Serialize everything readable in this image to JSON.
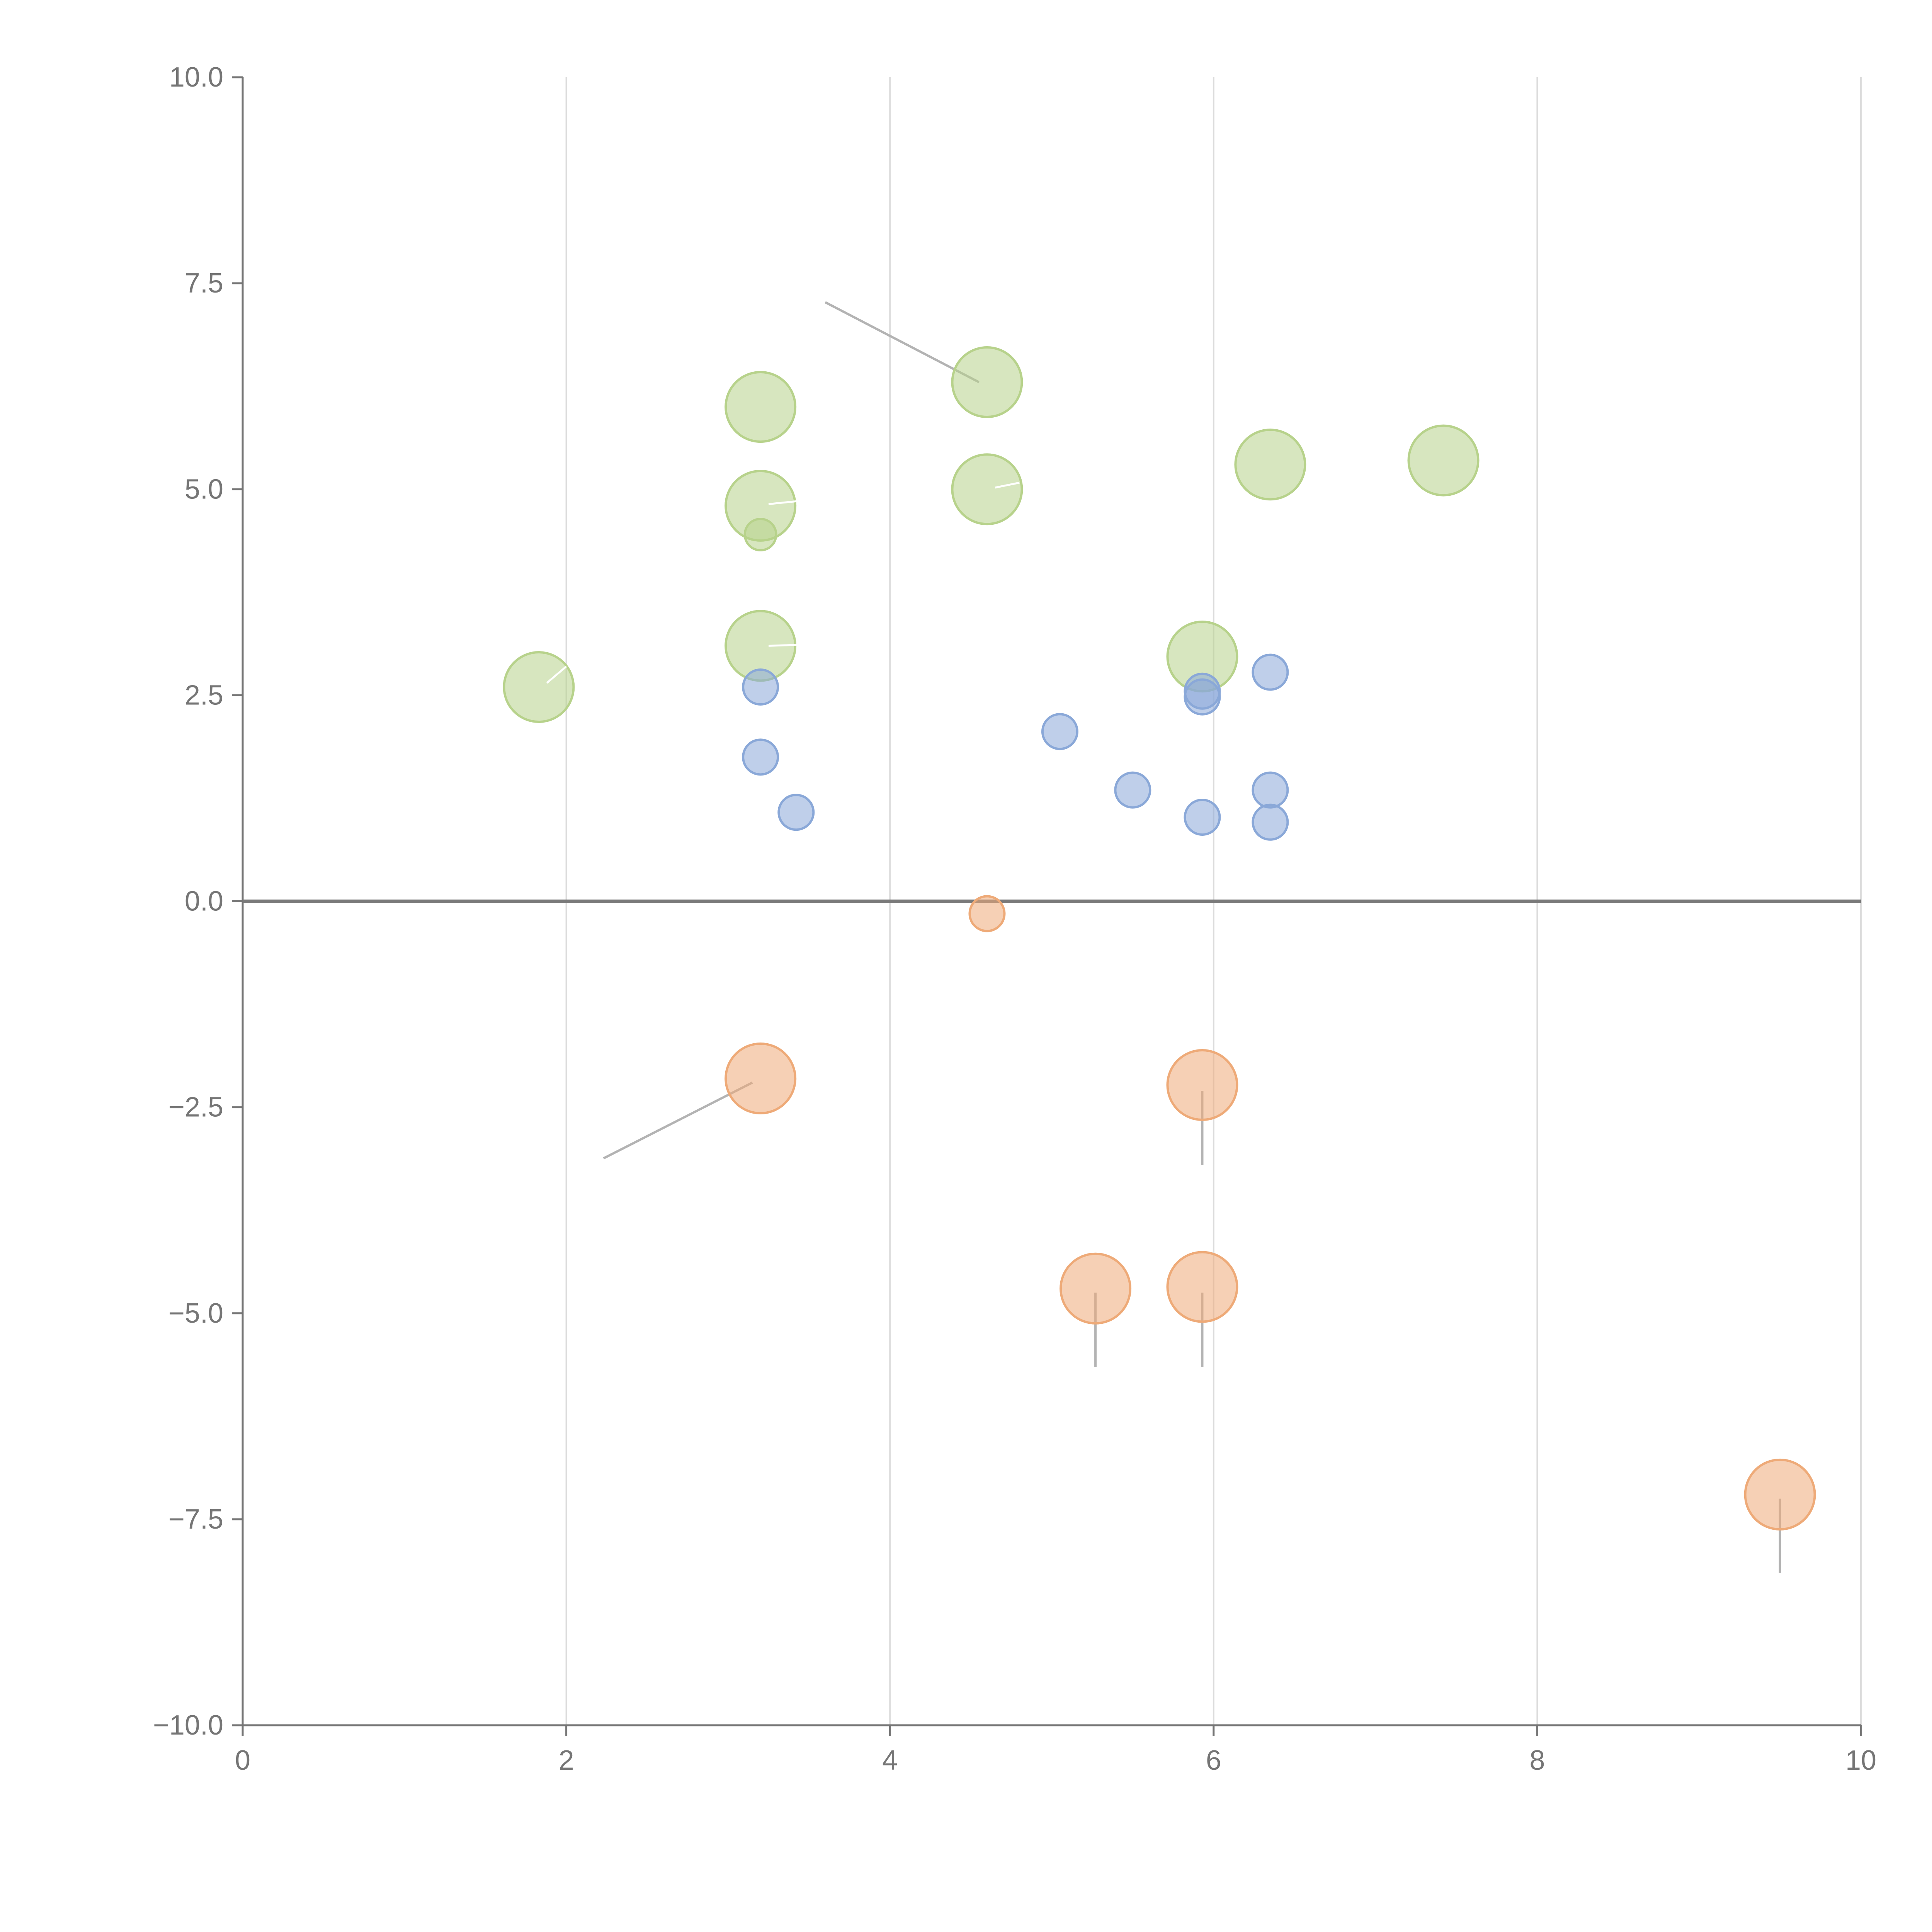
{
  "chart_data": {
    "type": "scatter",
    "title": "",
    "xlabel": "",
    "ylabel": "",
    "xlim": [
      0,
      10
    ],
    "ylim": [
      -10,
      10
    ],
    "x_ticks": [
      0,
      2,
      4,
      6,
      8,
      10
    ],
    "x_tick_labels": [
      "0",
      "2",
      "4",
      "6",
      "8",
      "10"
    ],
    "y_ticks": [
      10,
      7.5,
      5,
      2.5,
      0,
      -2.5,
      -5,
      -7.5,
      -10
    ],
    "y_tick_labels": [
      "10.0",
      "7.5",
      "5.0",
      "2.5",
      "0.0",
      "−2.5",
      "−5.0",
      "−7.5",
      "−10.0"
    ],
    "vertical_grid": true,
    "horizontal_grid": false,
    "zero_line": true,
    "colors": {
      "green": "#b7d28b",
      "blue": "#8aa8d8",
      "orange": "#eeaa78",
      "axis": "#757575",
      "grid": "#dcdcdc",
      "zero_line": "#7a7a7a",
      "leader_line": "#b3b3b3"
    },
    "series": [
      {
        "color_key": "green",
        "points": [
          {
            "x": 4.6,
            "y": 6.3,
            "size": 1
          },
          {
            "x": 3.2,
            "y": 6.0,
            "size": 1
          },
          {
            "x": 3.2,
            "y": 4.8,
            "size": 1
          },
          {
            "x": 3.2,
            "y": 4.45,
            "size": 0.45
          },
          {
            "x": 4.6,
            "y": 5.0,
            "size": 1
          },
          {
            "x": 6.35,
            "y": 5.3,
            "size": 1
          },
          {
            "x": 7.42,
            "y": 5.35,
            "size": 1
          },
          {
            "x": 1.83,
            "y": 2.6,
            "size": 1
          },
          {
            "x": 3.2,
            "y": 3.1,
            "size": 1
          },
          {
            "x": 5.93,
            "y": 2.97,
            "size": 1
          }
        ]
      },
      {
        "color_key": "blue",
        "points": [
          {
            "x": 3.2,
            "y": 2.6,
            "size": 0.5
          },
          {
            "x": 3.2,
            "y": 1.75,
            "size": 0.5
          },
          {
            "x": 3.42,
            "y": 1.08,
            "size": 0.5
          },
          {
            "x": 5.05,
            "y": 2.06,
            "size": 0.5
          },
          {
            "x": 5.5,
            "y": 1.35,
            "size": 0.5
          },
          {
            "x": 5.93,
            "y": 2.55,
            "size": 0.5
          },
          {
            "x": 5.93,
            "y": 2.48,
            "size": 0.5
          },
          {
            "x": 5.93,
            "y": 1.02,
            "size": 0.5
          },
          {
            "x": 6.35,
            "y": 2.78,
            "size": 0.5
          },
          {
            "x": 6.35,
            "y": 1.35,
            "size": 0.5
          },
          {
            "x": 6.35,
            "y": 0.96,
            "size": 0.5
          }
        ]
      },
      {
        "color_key": "orange",
        "points": [
          {
            "x": 4.6,
            "y": -0.15,
            "size": 0.5
          },
          {
            "x": 3.2,
            "y": -2.15,
            "size": 1
          },
          {
            "x": 5.93,
            "y": -2.23,
            "size": 1
          },
          {
            "x": 5.27,
            "y": -4.7,
            "size": 1
          },
          {
            "x": 5.93,
            "y": -4.68,
            "size": 1
          },
          {
            "x": 9.5,
            "y": -7.2,
            "size": 1
          }
        ]
      }
    ],
    "leader_lines": [
      {
        "color_key": "leader_line",
        "from": {
          "x": 4.55,
          "y": 6.3
        },
        "to": {
          "x": 3.6,
          "y": 7.27
        }
      },
      {
        "color_key": "leader_line",
        "from": {
          "x": 3.15,
          "y": -2.2
        },
        "to": {
          "x": 2.23,
          "y": -3.12
        }
      },
      {
        "color_key": "leader_line",
        "from": {
          "x": 5.93,
          "y": -2.3
        },
        "to": {
          "x": 5.93,
          "y": -3.2
        }
      },
      {
        "color_key": "leader_line",
        "from": {
          "x": 5.27,
          "y": -4.75
        },
        "to": {
          "x": 5.27,
          "y": -5.65
        }
      },
      {
        "color_key": "leader_line",
        "from": {
          "x": 5.93,
          "y": -4.75
        },
        "to": {
          "x": 5.93,
          "y": -5.65
        }
      },
      {
        "color_key": "leader_line",
        "from": {
          "x": 9.5,
          "y": -7.25
        },
        "to": {
          "x": 9.5,
          "y": -8.15
        }
      },
      {
        "color_key": "white",
        "from": {
          "x": 1.88,
          "y": 2.65
        },
        "to": {
          "x": 2.0,
          "y": 2.85
        }
      },
      {
        "color_key": "white",
        "from": {
          "x": 3.25,
          "y": 4.82
        },
        "to": {
          "x": 3.55,
          "y": 4.88
        }
      },
      {
        "color_key": "white",
        "from": {
          "x": 4.65,
          "y": 5.02
        },
        "to": {
          "x": 4.8,
          "y": 5.08
        }
      },
      {
        "color_key": "white",
        "from": {
          "x": 3.25,
          "y": 3.1
        },
        "to": {
          "x": 3.55,
          "y": 3.12
        }
      }
    ]
  }
}
